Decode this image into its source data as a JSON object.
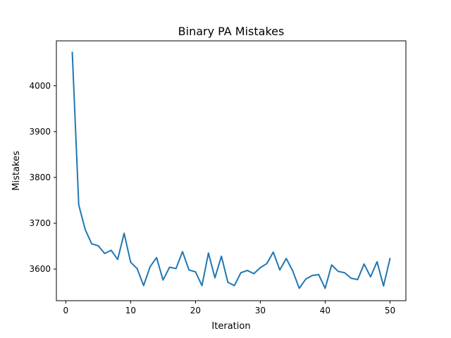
{
  "chart_data": {
    "type": "line",
    "title": "Binary PA Mistakes",
    "xlabel": "Iteration",
    "ylabel": "Mistakes",
    "xlim": [
      -1.45,
      52.45
    ],
    "ylim": [
      3531,
      4098
    ],
    "xticks": [
      0,
      10,
      20,
      30,
      40,
      50
    ],
    "yticks": [
      3600,
      3700,
      3800,
      3900,
      4000
    ],
    "grid": false,
    "color": "#1f77b4",
    "series": [
      {
        "x": [
          1,
          2,
          3,
          4,
          5,
          6,
          7,
          8,
          9,
          10,
          11,
          12,
          13,
          14,
          15,
          16,
          17,
          18,
          19,
          20,
          21,
          22,
          23,
          24,
          25,
          26,
          27,
          28,
          29,
          30,
          31,
          32,
          33,
          34,
          35,
          36,
          37,
          38,
          39,
          40,
          41,
          42,
          43,
          44,
          45,
          46,
          47,
          48,
          49,
          50
        ],
        "values": [
          4073,
          3740,
          3686,
          3655,
          3651,
          3634,
          3641,
          3621,
          3678,
          3615,
          3601,
          3564,
          3605,
          3625,
          3576,
          3604,
          3601,
          3638,
          3598,
          3594,
          3564,
          3635,
          3581,
          3628,
          3571,
          3564,
          3592,
          3597,
          3590,
          3603,
          3612,
          3637,
          3598,
          3623,
          3596,
          3558,
          3578,
          3586,
          3588,
          3558,
          3609,
          3595,
          3592,
          3580,
          3577,
          3611,
          3583,
          3616,
          3563,
          3623
        ]
      }
    ]
  }
}
